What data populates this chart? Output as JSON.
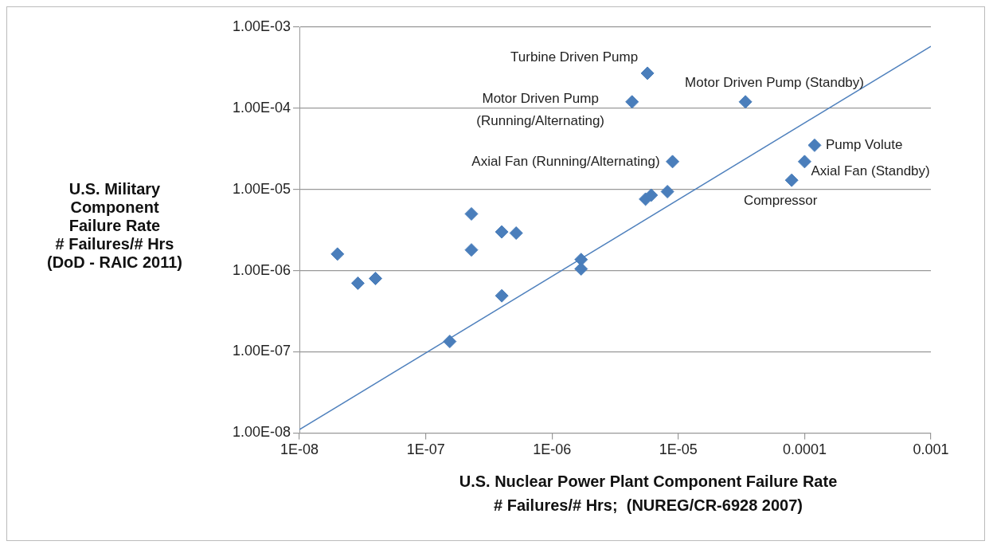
{
  "chart_data": {
    "type": "scatter",
    "xlabel": "U.S. Nuclear Power Plant Component Failure Rate\n# Failures/# Hrs;  (NUREG/CR-6928 2007)",
    "ylabel": "U.S. Military\nComponent\nFailure Rate\n# Failures/# Hrs\n(DoD - RAIC 2011)",
    "log": "xy",
    "grid": "y",
    "legend": false,
    "marker": "diamond",
    "xlim": [
      1e-08,
      0.001
    ],
    "ylim": [
      1e-08,
      0.001
    ],
    "xticks": [
      {
        "value": 1e-08,
        "label": "1E-08"
      },
      {
        "value": 1e-07,
        "label": "1E-07"
      },
      {
        "value": 1e-06,
        "label": "1E-06"
      },
      {
        "value": 1e-05,
        "label": "1E-05"
      },
      0.0001,
      0.001
    ],
    "yticks": [
      {
        "value": 1e-08,
        "label": "1.00E-08"
      },
      {
        "value": 1e-07,
        "label": "1.00E-07"
      },
      {
        "value": 1e-06,
        "label": "1.00E-06"
      },
      {
        "value": 1e-05,
        "label": "1.00E-05"
      },
      {
        "value": 0.0001,
        "label": "1.00E-04"
      },
      {
        "value": 0.001,
        "label": "1.00E-03"
      }
    ],
    "series": [
      {
        "color": "#4a7ebb",
        "x": [
          2e-08,
          2.9e-08,
          4e-08,
          2.3e-07,
          2.3e-07,
          4e-07,
          5.2e-07,
          4e-07,
          1.55e-07,
          1.7e-06,
          1.7e-06,
          5.5e-06,
          6.1e-06,
          8.2e-06,
          9e-06,
          5.7e-06,
          4.3e-06,
          3.4e-05,
          0.00012,
          0.0001,
          7.9e-05
        ],
        "values": [
          1.6e-06,
          7e-07,
          8e-07,
          1.8e-06,
          5e-06,
          3e-06,
          2.9e-06,
          4.9e-07,
          1.34e-07,
          1.37e-06,
          1.05e-06,
          7.6e-06,
          8.5e-06,
          9.4e-06,
          2.2e-05,
          0.00027,
          0.00012,
          0.00012,
          3.5e-05,
          2.2e-05,
          1.3e-05
        ]
      },
      {
        "type": "line",
        "color": "#4f81bd",
        "marker": "none",
        "x": [
          1e-08,
          0.001
        ],
        "values": [
          1.1e-08,
          0.00058
        ]
      }
    ],
    "annotations": [
      {
        "text": "Turbine Driven Pump",
        "x": 5.7e-06,
        "y": 0.00027
      },
      {
        "text": "Motor Driven Pump\n(Running/Alternating)",
        "x": 4.3e-06,
        "y": 0.00012
      },
      {
        "text": "Motor Driven Pump (Standby)",
        "x": 3.4e-05,
        "y": 0.00012
      },
      {
        "text": "Pump Volute",
        "x": 0.00012,
        "y": 3.5e-05
      },
      {
        "text": "Axial Fan (Running/Alternating)",
        "x": 9e-06,
        "y": 2.2e-05
      },
      {
        "text": "Axial Fan (Standby)",
        "x": 0.0001,
        "y": 2.2e-05
      },
      {
        "text": "Compressor",
        "x": 7.9e-05,
        "y": 1.3e-05
      }
    ]
  }
}
